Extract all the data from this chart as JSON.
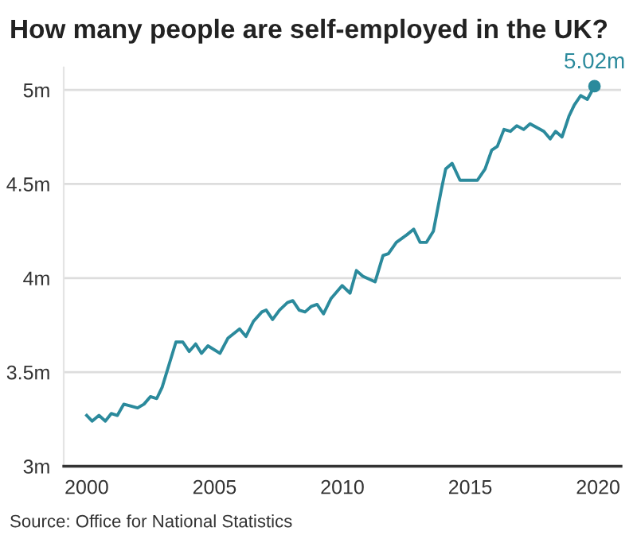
{
  "chart_data": {
    "type": "line",
    "title": "How many people are self-employed in the UK?",
    "series": [
      {
        "name": null,
        "color": "#2b8a9c",
        "x": [
          2000.0,
          2000.21,
          2000.48,
          2000.73,
          2000.96,
          2001.2,
          2001.45,
          2001.99,
          2002.24,
          2002.49,
          2002.74,
          2002.95,
          2003.49,
          2003.76,
          2004.01,
          2004.26,
          2004.49,
          2004.74,
          2005.21,
          2005.52,
          2005.98,
          2006.23,
          2006.52,
          2006.85,
          2007.02,
          2007.27,
          2007.54,
          2007.85,
          2008.06,
          2008.31,
          2008.54,
          2008.79,
          2009.01,
          2009.26,
          2009.55,
          2009.99,
          2010.3,
          2010.55,
          2010.8,
          2011.28,
          2011.59,
          2011.8,
          2012.11,
          2012.52,
          2012.79,
          2013.04,
          2013.29,
          2013.56,
          2013.87,
          2014.04,
          2014.29,
          2014.6,
          2015.02,
          2015.28,
          2015.58,
          2015.84,
          2016.06,
          2016.32,
          2016.57,
          2016.82,
          2017.09,
          2017.34,
          2017.61,
          2017.88,
          2018.13,
          2018.34,
          2018.59,
          2018.86,
          2019.07,
          2019.32,
          2019.58,
          2019.86
        ],
        "values": [
          3.27,
          3.24,
          3.27,
          3.24,
          3.28,
          3.27,
          3.33,
          3.31,
          3.33,
          3.37,
          3.36,
          3.42,
          3.66,
          3.66,
          3.61,
          3.65,
          3.6,
          3.64,
          3.6,
          3.68,
          3.73,
          3.69,
          3.77,
          3.82,
          3.83,
          3.78,
          3.83,
          3.87,
          3.88,
          3.83,
          3.82,
          3.85,
          3.86,
          3.81,
          3.89,
          3.96,
          3.92,
          4.04,
          4.01,
          3.98,
          4.12,
          4.13,
          4.19,
          4.23,
          4.26,
          4.19,
          4.19,
          4.25,
          4.47,
          4.58,
          4.61,
          4.52,
          4.52,
          4.52,
          4.58,
          4.68,
          4.7,
          4.79,
          4.78,
          4.81,
          4.79,
          4.82,
          4.8,
          4.78,
          4.74,
          4.78,
          4.75,
          4.86,
          4.92,
          4.97,
          4.95,
          5.02
        ]
      },
      {
        "type": "scatter",
        "marker": "circle",
        "color": "#2b8a9c",
        "x": [
          2019.86
        ],
        "values": [
          5.02
        ],
        "value_labels": [
          "5.02m"
        ]
      }
    ],
    "xlim": [
      1999.1,
      2020.9
    ],
    "xticks": [
      2000,
      2005,
      2010,
      2015,
      2020
    ],
    "ylim": [
      3,
      5.12
    ],
    "yticks": [
      {
        "value": 3,
        "label": "3m"
      },
      {
        "value": 3.5,
        "label": "3.5m"
      },
      {
        "value": 4,
        "label": "4m"
      },
      {
        "value": 4.5,
        "label": "4.5m"
      },
      {
        "value": 5,
        "label": "5m"
      }
    ],
    "grid": "y",
    "marker": "none",
    "line_style": "solid",
    "legend": false,
    "annotations": [
      "Source: Office for National Statistics"
    ]
  }
}
